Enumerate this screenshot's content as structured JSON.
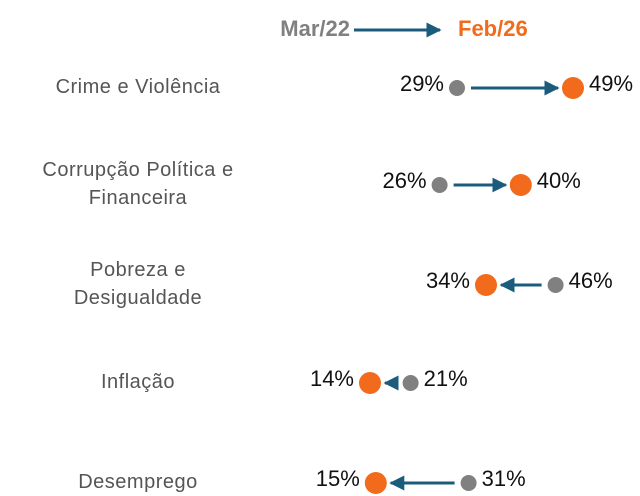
{
  "chart_data": {
    "type": "arrow",
    "categories": [
      "Crime e Violência",
      "Corrupção Política e\nFinanceira",
      "Pobreza e\nDesigualdade",
      "Inflação",
      "Desemprego"
    ],
    "series": [
      {
        "name": "Mar/22",
        "color": "#808080",
        "values": [
          29,
          26,
          46,
          21,
          31
        ],
        "value_labels": [
          "29%",
          "26%",
          "46%",
          "21%",
          "31%"
        ]
      },
      {
        "name": "Feb/26",
        "color": "#f26a1b",
        "values": [
          49,
          40,
          34,
          14,
          15
        ],
        "value_labels": [
          "49%",
          "40%",
          "34%",
          "14%",
          "15%"
        ]
      }
    ],
    "arrow_color": "#1b5c7d"
  }
}
